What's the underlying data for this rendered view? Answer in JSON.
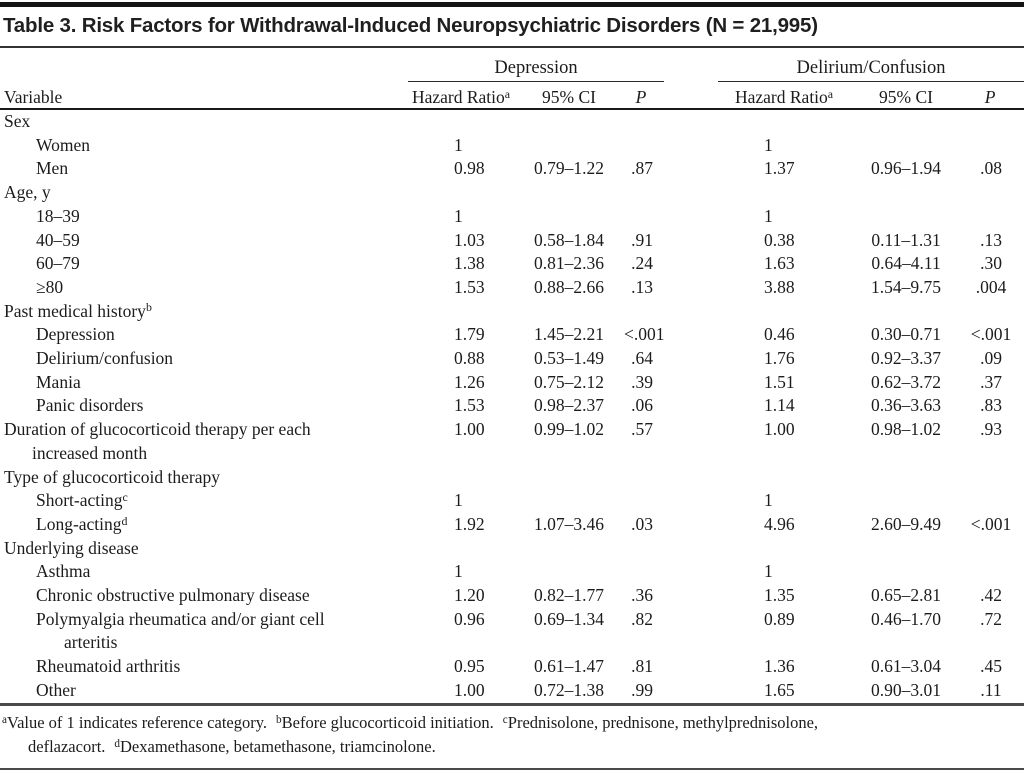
{
  "title": "Table 3. Risk Factors for Withdrawal-Induced Neuropsychiatric Disorders (N = 21,995)",
  "groups": [
    "Depression",
    "Delirium/Confusion"
  ],
  "columns": {
    "variable": "Variable",
    "hazard_ratio": "Hazard Ratio",
    "hazard_ratio_sup": "a",
    "ci": "95% CI",
    "p": "P"
  },
  "rows": [
    {
      "label": "Sex",
      "indent": 0,
      "cells": [
        "",
        "",
        "",
        "",
        "",
        ""
      ]
    },
    {
      "label": "Women",
      "indent": 1,
      "cells": [
        "1",
        "",
        "",
        "1",
        "",
        ""
      ]
    },
    {
      "label": "Men",
      "indent": 1,
      "cells": [
        "0.98",
        "0.79–1.22",
        ".87",
        "1.37",
        "0.96–1.94",
        ".08"
      ]
    },
    {
      "label": "Age, y",
      "indent": 0,
      "cells": [
        "",
        "",
        "",
        "",
        "",
        ""
      ]
    },
    {
      "label": "18–39",
      "indent": 1,
      "cells": [
        "1",
        "",
        "",
        "1",
        "",
        ""
      ]
    },
    {
      "label": "40–59",
      "indent": 1,
      "cells": [
        "1.03",
        "0.58–1.84",
        ".91",
        "0.38",
        "0.11–1.31",
        ".13"
      ]
    },
    {
      "label": "60–79",
      "indent": 1,
      "cells": [
        "1.38",
        "0.81–2.36",
        ".24",
        "1.63",
        "0.64–4.11",
        ".30"
      ]
    },
    {
      "label": "≥80",
      "indent": 1,
      "cells": [
        "1.53",
        "0.88–2.66",
        ".13",
        "3.88",
        "1.54–9.75",
        ".004"
      ]
    },
    {
      "label": "Past medical history",
      "sup": "b",
      "indent": 0,
      "cells": [
        "",
        "",
        "",
        "",
        "",
        ""
      ]
    },
    {
      "label": "Depression",
      "indent": 1,
      "cells": [
        "1.79",
        "1.45–2.21",
        "<.001",
        "0.46",
        "0.30–0.71",
        "<.001"
      ]
    },
    {
      "label": "Delirium/confusion",
      "indent": 1,
      "cells": [
        "0.88",
        "0.53–1.49",
        ".64",
        "1.76",
        "0.92–3.37",
        ".09"
      ]
    },
    {
      "label": "Mania",
      "indent": 1,
      "cells": [
        "1.26",
        "0.75–2.12",
        ".39",
        "1.51",
        "0.62–3.72",
        ".37"
      ]
    },
    {
      "label": "Panic disorders",
      "indent": 1,
      "cells": [
        "1.53",
        "0.98–2.37",
        ".06",
        "1.14",
        "0.36–3.63",
        ".83"
      ]
    },
    {
      "label": "Duration of glucocorticoid therapy per each",
      "label2": "increased month",
      "indent": 0,
      "cells": [
        "1.00",
        "0.99–1.02",
        ".57",
        "1.00",
        "0.98–1.02",
        ".93"
      ]
    },
    {
      "label": "Type of glucocorticoid therapy",
      "indent": 0,
      "cells": [
        "",
        "",
        "",
        "",
        "",
        ""
      ]
    },
    {
      "label": "Short-acting",
      "sup": "c",
      "indent": 1,
      "cells": [
        "1",
        "",
        "",
        "1",
        "",
        ""
      ]
    },
    {
      "label": "Long-acting",
      "sup": "d",
      "indent": 1,
      "cells": [
        "1.92",
        "1.07–3.46",
        ".03",
        "4.96",
        "2.60–9.49",
        "<.001"
      ]
    },
    {
      "label": "Underlying disease",
      "indent": 0,
      "cells": [
        "",
        "",
        "",
        "",
        "",
        ""
      ]
    },
    {
      "label": "Asthma",
      "indent": 1,
      "cells": [
        "1",
        "",
        "",
        "1",
        "",
        ""
      ]
    },
    {
      "label": "Chronic obstructive pulmonary disease",
      "indent": 1,
      "cells": [
        "1.20",
        "0.82–1.77",
        ".36",
        "1.35",
        "0.65–2.81",
        ".42"
      ]
    },
    {
      "label": "Polymyalgia rheumatica and/or giant cell",
      "label2": "arteritis",
      "indent": 1,
      "cells": [
        "0.96",
        "0.69–1.34",
        ".82",
        "0.89",
        "0.46–1.70",
        ".72"
      ]
    },
    {
      "label": "Rheumatoid arthritis",
      "indent": 1,
      "cells": [
        "0.95",
        "0.61–1.47",
        ".81",
        "1.36",
        "0.61–3.04",
        ".45"
      ]
    },
    {
      "label": "Other",
      "indent": 1,
      "cells": [
        "1.00",
        "0.72–1.38",
        ".99",
        "1.65",
        "0.90–3.01",
        ".11"
      ]
    }
  ],
  "footnotes": [
    {
      "sup": "a",
      "text": "Value of 1 indicates reference category."
    },
    {
      "sup": "b",
      "text": "Before glucocorticoid initiation."
    },
    {
      "sup": "c",
      "text": "Prednisolone, prednisone, methylprednisolone, deflazacort."
    },
    {
      "sup": "d",
      "text": "Dexamethasone, betamethasone, triamcinolone."
    }
  ],
  "colors": {
    "text": "#1c1c1c",
    "rule_heavy": "#141414",
    "rule_light": "#4a4a4a",
    "background": "#ffffff"
  }
}
